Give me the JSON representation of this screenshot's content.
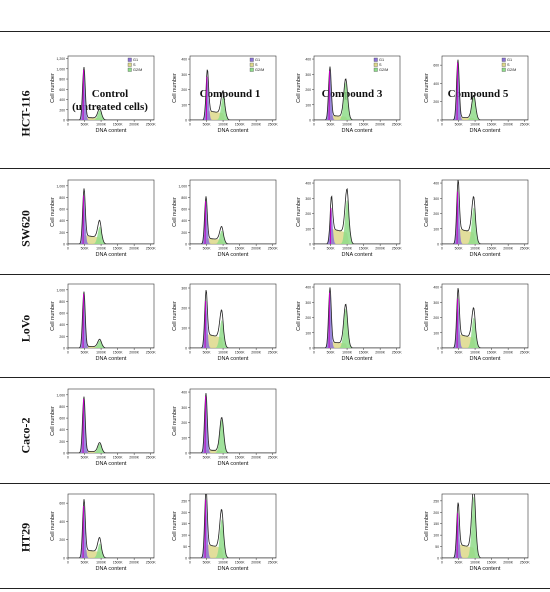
{
  "column_headers": [
    "Control\n(untreated cells)",
    "Compound 1",
    "Compound 3",
    "Compound 5"
  ],
  "row_labels": [
    "HCT-116",
    "SW620",
    "LoVo",
    "Caco-2",
    "HT29"
  ],
  "legend": {
    "g1": "G1",
    "s": "S",
    "g2m": "G2/M"
  },
  "colors": {
    "g1": "#8a72d6",
    "s": "#ddd88a",
    "g2m": "#8fdc8a",
    "outline": "#222222",
    "peak_line": "#c000c0"
  },
  "chart_data": [
    {
      "type": "area",
      "row": "HCT-116",
      "column": "Control\n(untreated cells)",
      "xlabel": "DNA content",
      "ylabel": "Cell number",
      "xticks": [
        "0",
        "500K",
        "1000K",
        "1500K",
        "2000K",
        "2500K"
      ],
      "yticks": [
        "0",
        "200",
        "400",
        "600",
        "800",
        "1,000",
        "1,200"
      ],
      "ylim": [
        0,
        1250
      ],
      "xlim": [
        0,
        2600
      ],
      "g1_peak": {
        "x": 480,
        "y": 1000
      },
      "g2m_peak": {
        "x": 960,
        "y": 190
      },
      "s_level": 50,
      "legend": true
    },
    {
      "type": "area",
      "row": "HCT-116",
      "column": "Compound 1",
      "xlabel": "DNA content",
      "ylabel": "Cell number",
      "xticks": [
        "0",
        "500K",
        "1000K",
        "1500K",
        "2000K",
        "2500K"
      ],
      "yticks": [
        "0",
        "100",
        "200",
        "300",
        "400"
      ],
      "ylim": [
        0,
        420
      ],
      "xlim": [
        0,
        2600
      ],
      "g1_peak": {
        "x": 520,
        "y": 290
      },
      "g2m_peak": {
        "x": 1000,
        "y": 150
      },
      "s_level": 60,
      "legend": true
    },
    {
      "type": "area",
      "row": "HCT-116",
      "column": "Compound 3",
      "xlabel": "DNA content",
      "ylabel": "Cell number",
      "xticks": [
        "0",
        "500K",
        "1000K",
        "1500K",
        "2000K",
        "2500K"
      ],
      "yticks": [
        "0",
        "100",
        "200",
        "300",
        "400"
      ],
      "ylim": [
        0,
        420
      ],
      "xlim": [
        0,
        2600
      ],
      "g1_peak": {
        "x": 480,
        "y": 330
      },
      "g2m_peak": {
        "x": 960,
        "y": 250
      },
      "s_level": 30,
      "legend": true
    },
    {
      "type": "area",
      "row": "HCT-116",
      "column": "Compound 5",
      "xlabel": "DNA content",
      "ylabel": "Cell number",
      "xticks": [
        "0",
        "500K",
        "1000K",
        "1500K",
        "2000K",
        "2500K"
      ],
      "yticks": [
        "0",
        "200",
        "400",
        "600"
      ],
      "ylim": [
        0,
        700
      ],
      "xlim": [
        0,
        2600
      ],
      "g1_peak": {
        "x": 480,
        "y": 640
      },
      "g2m_peak": {
        "x": 960,
        "y": 250
      },
      "s_level": 30,
      "legend": true
    },
    {
      "type": "area",
      "row": "SW620",
      "column": "Control\n(untreated cells)",
      "xlabel": "DNA content",
      "ylabel": "Cell number",
      "xticks": [
        "0",
        "500K",
        "1000K",
        "1500K",
        "2000K",
        "2500K"
      ],
      "yticks": [
        "0",
        "200",
        "400",
        "600",
        "800",
        "1,000"
      ],
      "ylim": [
        0,
        1100
      ],
      "xlim": [
        0,
        2600
      ],
      "g1_peak": {
        "x": 480,
        "y": 850
      },
      "g2m_peak": {
        "x": 960,
        "y": 300
      },
      "s_level": 150,
      "legend": false
    },
    {
      "type": "area",
      "row": "SW620",
      "column": "Compound 1",
      "xlabel": "DNA content",
      "ylabel": "Cell number",
      "xticks": [
        "0",
        "500K",
        "1000K",
        "1500K",
        "2000K",
        "2500K"
      ],
      "yticks": [
        "0",
        "200",
        "400",
        "600",
        "800",
        "1,000"
      ],
      "ylim": [
        0,
        1100
      ],
      "xlim": [
        0,
        2600
      ],
      "g1_peak": {
        "x": 480,
        "y": 750
      },
      "g2m_peak": {
        "x": 960,
        "y": 230
      },
      "s_level": 100,
      "legend": false
    },
    {
      "type": "area",
      "row": "SW620",
      "column": "Compound 3",
      "xlabel": "DNA content",
      "ylabel": "Cell number",
      "xticks": [
        "0",
        "500K",
        "1000K",
        "1500K",
        "2000K",
        "2500K"
      ],
      "yticks": [
        "0",
        "100",
        "200",
        "300",
        "400"
      ],
      "ylim": [
        0,
        420
      ],
      "xlim": [
        0,
        2600
      ],
      "g1_peak": {
        "x": 520,
        "y": 240
      },
      "g2m_peak": {
        "x": 1000,
        "y": 290
      },
      "s_level": 100,
      "legend": false
    },
    {
      "type": "area",
      "row": "SW620",
      "column": "Compound 5",
      "xlabel": "DNA content",
      "ylabel": "Cell number",
      "xticks": [
        "0",
        "500K",
        "1000K",
        "1500K",
        "2000K",
        "2500K"
      ],
      "yticks": [
        "0",
        "100",
        "200",
        "300",
        "400"
      ],
      "ylim": [
        0,
        420
      ],
      "xlim": [
        0,
        2600
      ],
      "g1_peak": {
        "x": 480,
        "y": 350
      },
      "g2m_peak": {
        "x": 960,
        "y": 240
      },
      "s_level": 100,
      "legend": false
    },
    {
      "type": "area",
      "row": "LoVo",
      "column": "Control\n(untreated cells)",
      "xlabel": "DNA content",
      "ylabel": "Cell number",
      "xticks": [
        "0",
        "500K",
        "1000K",
        "1500K",
        "2000K",
        "2500K"
      ],
      "yticks": [
        "0",
        "200",
        "400",
        "600",
        "800",
        "1,000"
      ],
      "ylim": [
        0,
        1100
      ],
      "xlim": [
        0,
        2600
      ],
      "g1_peak": {
        "x": 480,
        "y": 950
      },
      "g2m_peak": {
        "x": 960,
        "y": 130
      },
      "s_level": 30,
      "legend": false
    },
    {
      "type": "area",
      "row": "LoVo",
      "column": "Compound 1",
      "xlabel": "DNA content",
      "ylabel": "Cell number",
      "xticks": [
        "0",
        "500K",
        "1000K",
        "1500K",
        "2000K",
        "2500K"
      ],
      "yticks": [
        "0",
        "100",
        "200",
        "300"
      ],
      "ylim": [
        0,
        320
      ],
      "xlim": [
        0,
        2600
      ],
      "g1_peak": {
        "x": 480,
        "y": 240
      },
      "g2m_peak": {
        "x": 960,
        "y": 140
      },
      "s_level": 70,
      "legend": false
    },
    {
      "type": "area",
      "row": "LoVo",
      "column": "Compound 3",
      "xlabel": "DNA content",
      "ylabel": "Cell number",
      "xticks": [
        "0",
        "500K",
        "1000K",
        "1500K",
        "2000K",
        "2500K"
      ],
      "yticks": [
        "0",
        "100",
        "200",
        "300",
        "400"
      ],
      "ylim": [
        0,
        420
      ],
      "xlim": [
        0,
        2600
      ],
      "g1_peak": {
        "x": 480,
        "y": 370
      },
      "g2m_peak": {
        "x": 960,
        "y": 260
      },
      "s_level": 40,
      "legend": false
    },
    {
      "type": "area",
      "row": "LoVo",
      "column": "Compound 5",
      "xlabel": "DNA content",
      "ylabel": "Cell number",
      "xticks": [
        "0",
        "500K",
        "1000K",
        "1500K",
        "2000K",
        "2500K"
      ],
      "yticks": [
        "0",
        "100",
        "200",
        "300",
        "400"
      ],
      "ylim": [
        0,
        420
      ],
      "xlim": [
        0,
        2600
      ],
      "g1_peak": {
        "x": 480,
        "y": 330
      },
      "g2m_peak": {
        "x": 960,
        "y": 200
      },
      "s_level": 90,
      "legend": false
    },
    {
      "type": "area",
      "row": "Caco-2",
      "column": "Control\n(untreated cells)",
      "xlabel": "DNA content",
      "ylabel": "Cell number",
      "xticks": [
        "0",
        "500K",
        "1000K",
        "1500K",
        "2000K",
        "2500K"
      ],
      "yticks": [
        "0",
        "200",
        "400",
        "600",
        "800",
        "1,000"
      ],
      "ylim": [
        0,
        1100
      ],
      "xlim": [
        0,
        2600
      ],
      "g1_peak": {
        "x": 480,
        "y": 950
      },
      "g2m_peak": {
        "x": 960,
        "y": 160
      },
      "s_level": 30,
      "legend": false
    },
    {
      "type": "area",
      "row": "Caco-2",
      "column": "Compound 1",
      "xlabel": "DNA content",
      "ylabel": "Cell number",
      "xticks": [
        "0",
        "500K",
        "1000K",
        "1500K",
        "2000K",
        "2500K"
      ],
      "yticks": [
        "0",
        "100",
        "200",
        "300",
        "400"
      ],
      "ylim": [
        0,
        420
      ],
      "xlim": [
        0,
        2600
      ],
      "g1_peak": {
        "x": 480,
        "y": 380
      },
      "g2m_peak": {
        "x": 960,
        "y": 220
      },
      "s_level": 20,
      "legend": false
    },
    {
      "type": "area",
      "row": "HT29",
      "column": "Control\n(untreated cells)",
      "xlabel": "DNA content",
      "ylabel": "Cell number",
      "xticks": [
        "0",
        "500K",
        "1000K",
        "1500K",
        "2000K",
        "2500K"
      ],
      "yticks": [
        "0",
        "200",
        "400",
        "600"
      ],
      "ylim": [
        0,
        700
      ],
      "xlim": [
        0,
        2600
      ],
      "g1_peak": {
        "x": 480,
        "y": 580
      },
      "g2m_peak": {
        "x": 960,
        "y": 160
      },
      "s_level": 90,
      "legend": false
    },
    {
      "type": "area",
      "row": "HT29",
      "column": "Compound 1",
      "xlabel": "DNA content",
      "ylabel": "Cell number",
      "xticks": [
        "0",
        "500K",
        "1000K",
        "1500K",
        "2000K",
        "2500K"
      ],
      "yticks": [
        "0",
        "50",
        "100",
        "150",
        "200",
        "250"
      ],
      "ylim": [
        0,
        280
      ],
      "xlim": [
        0,
        2600
      ],
      "g1_peak": {
        "x": 480,
        "y": 260
      },
      "g2m_peak": {
        "x": 960,
        "y": 170
      },
      "s_level": 60,
      "legend": false
    },
    {
      "type": "area",
      "row": "HT29",
      "column": "Compound 5",
      "xlabel": "DNA content",
      "ylabel": "Cell number",
      "xticks": [
        "0",
        "500K",
        "1000K",
        "1500K",
        "2000K",
        "2500K"
      ],
      "yticks": [
        "0",
        "50",
        "100",
        "150",
        "200",
        "250"
      ],
      "ylim": [
        0,
        280
      ],
      "xlim": [
        0,
        2600
      ],
      "g1_peak": {
        "x": 480,
        "y": 200
      },
      "g2m_peak": {
        "x": 960,
        "y": 270
      },
      "s_level": 60,
      "legend": false
    }
  ]
}
